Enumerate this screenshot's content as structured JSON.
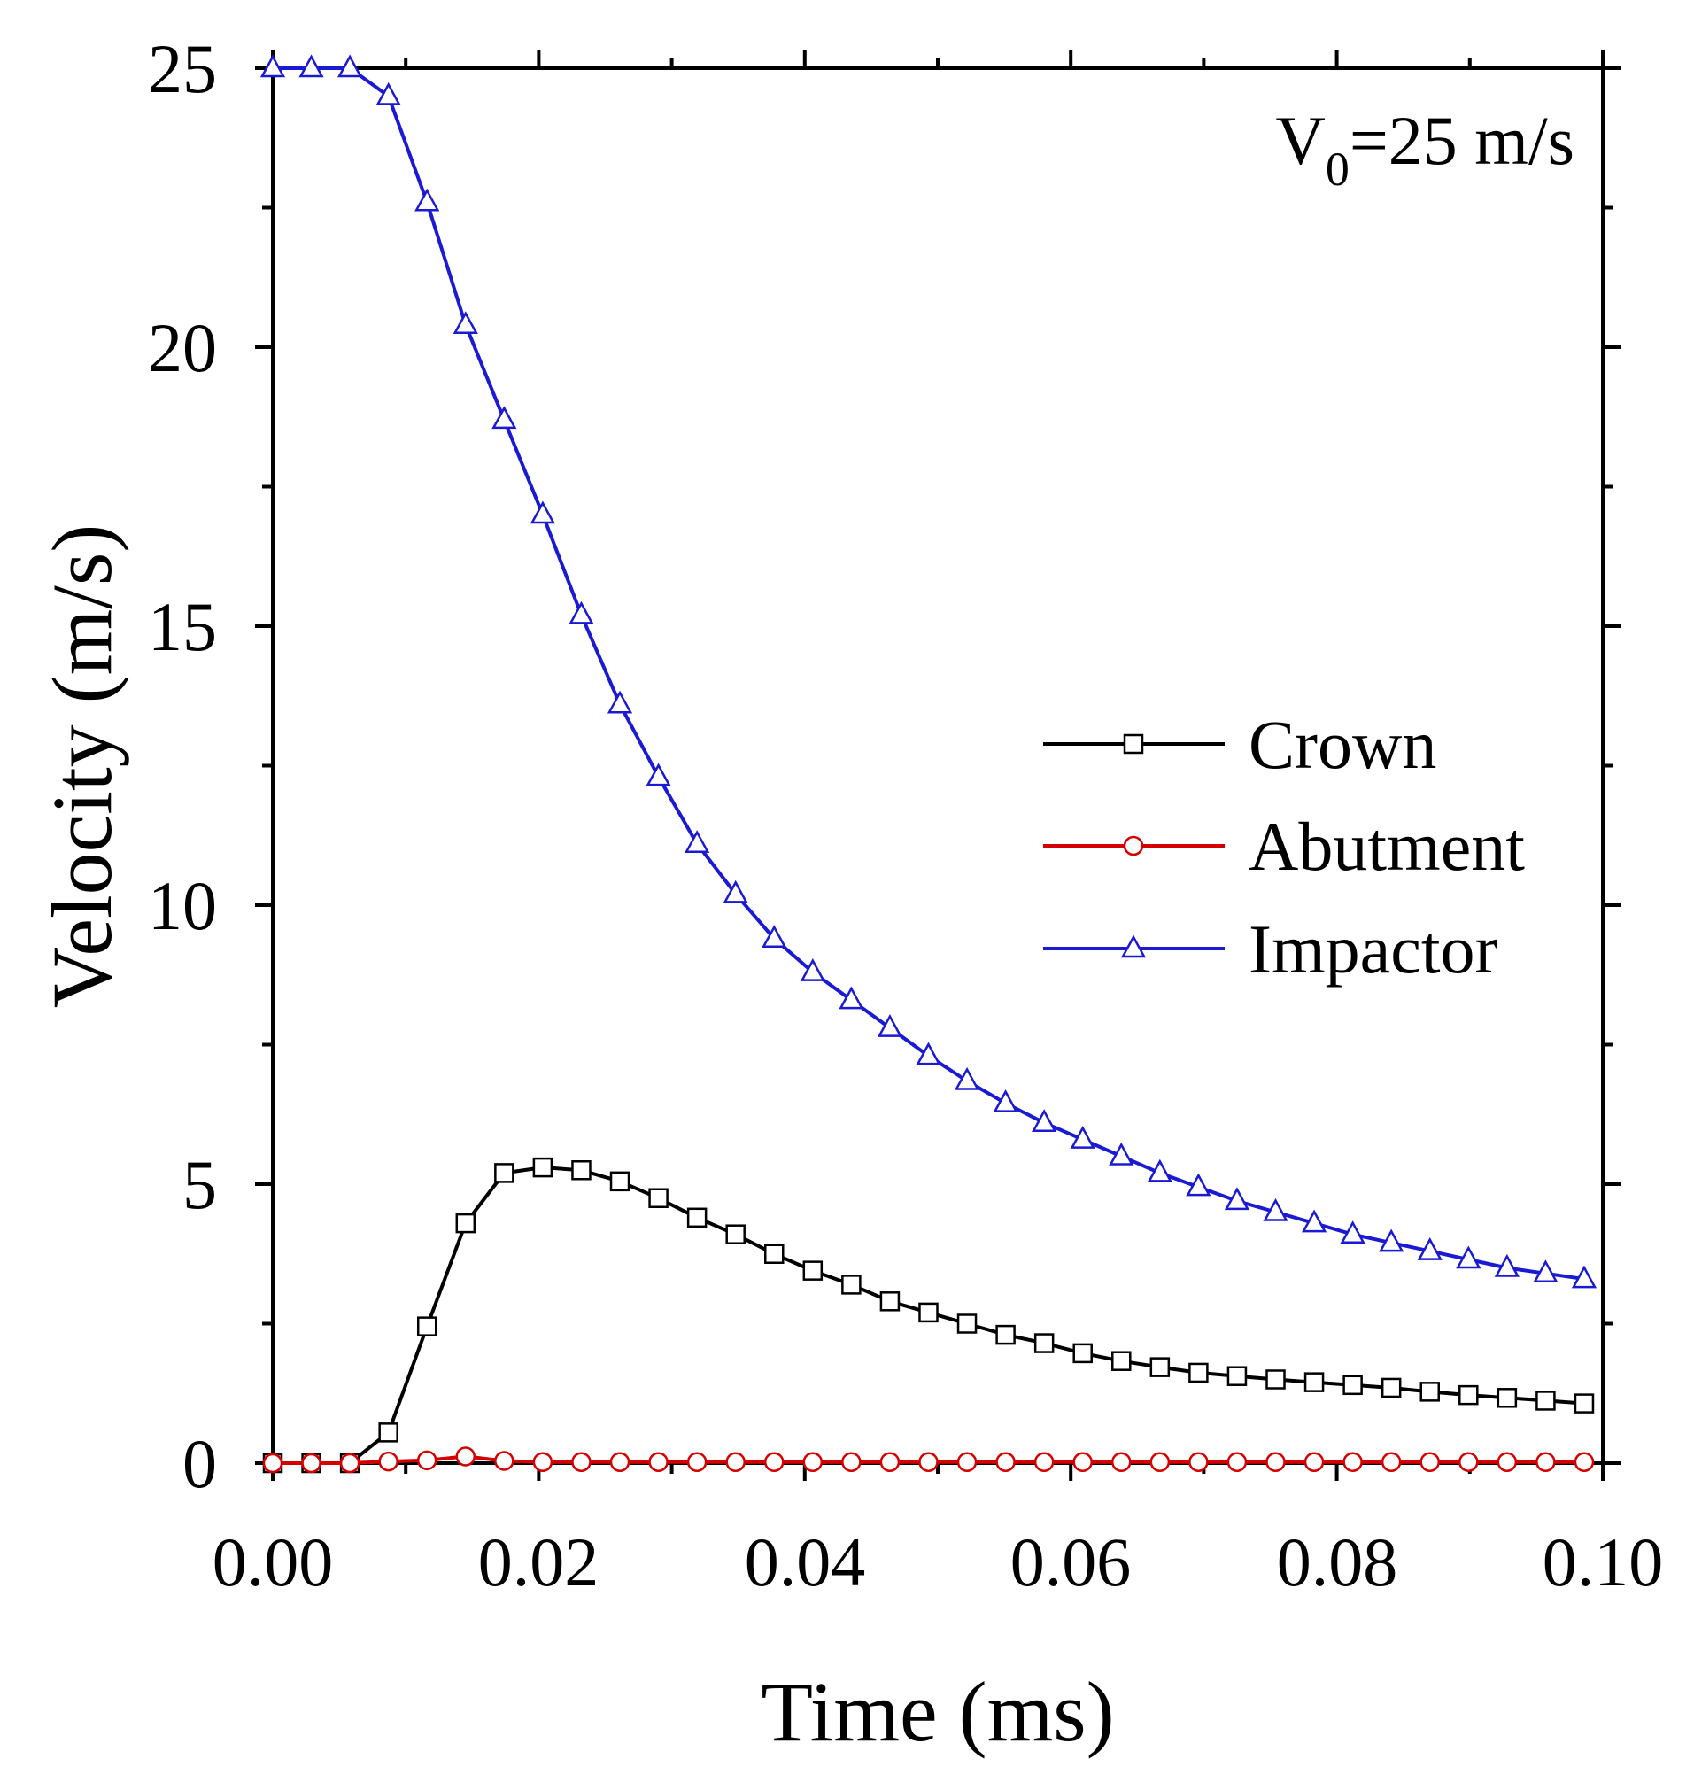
{
  "chart_data": {
    "type": "line",
    "title": "",
    "xlabel": "Time (ms)",
    "ylabel": "Velocity (m/s)",
    "xlim": [
      0,
      0.1
    ],
    "ylim": [
      0,
      25
    ],
    "xticks": [
      "0.00",
      "0.02",
      "0.04",
      "0.06",
      "0.08",
      "0.10"
    ],
    "yticks": [
      "0",
      "5",
      "10",
      "15",
      "20",
      "25"
    ],
    "annotation": "V",
    "annotation_sub": "0",
    "annotation_rest": "=25 m/s",
    "legend_position": "center-right",
    "series": [
      {
        "name": "Crown",
        "color": "#000000",
        "marker": "square",
        "x": [
          0,
          0.0029,
          0.0058,
          0.0087,
          0.0116,
          0.0145,
          0.0174,
          0.0203,
          0.0232,
          0.0261,
          0.029,
          0.0319,
          0.0348,
          0.0377,
          0.0406,
          0.0435,
          0.0464,
          0.0493,
          0.0522,
          0.0551,
          0.058,
          0.0609,
          0.0638,
          0.0667,
          0.0696,
          0.0725,
          0.0754,
          0.0783,
          0.0812,
          0.0841,
          0.087,
          0.0899,
          0.0928,
          0.0957,
          0.0986
        ],
        "y": [
          0,
          0,
          0,
          0.55,
          2.45,
          4.3,
          5.2,
          5.3,
          5.25,
          5.05,
          4.75,
          4.4,
          4.1,
          3.75,
          3.45,
          3.2,
          2.9,
          2.7,
          2.5,
          2.3,
          2.15,
          1.97,
          1.83,
          1.72,
          1.62,
          1.56,
          1.5,
          1.45,
          1.4,
          1.35,
          1.28,
          1.22,
          1.17,
          1.12,
          1.07
        ]
      },
      {
        "name": "Abutment",
        "color": "#d40000",
        "marker": "circle",
        "x": [
          0,
          0.0029,
          0.0058,
          0.0087,
          0.0116,
          0.0145,
          0.0174,
          0.0203,
          0.0232,
          0.0261,
          0.029,
          0.0319,
          0.0348,
          0.0377,
          0.0406,
          0.0435,
          0.0464,
          0.0493,
          0.0522,
          0.0551,
          0.058,
          0.0609,
          0.0638,
          0.0667,
          0.0696,
          0.0725,
          0.0754,
          0.0783,
          0.0812,
          0.0841,
          0.087,
          0.0899,
          0.0928,
          0.0957,
          0.0986
        ],
        "y": [
          0,
          0,
          0,
          0.03,
          0.05,
          0.12,
          0.04,
          0.02,
          0.02,
          0.02,
          0.02,
          0.02,
          0.02,
          0.02,
          0.02,
          0.02,
          0.02,
          0.02,
          0.02,
          0.02,
          0.02,
          0.02,
          0.02,
          0.02,
          0.02,
          0.02,
          0.02,
          0.02,
          0.02,
          0.02,
          0.02,
          0.02,
          0.02,
          0.02,
          0.02
        ]
      },
      {
        "name": "Impactor",
        "color": "#1a1ad4",
        "marker": "triangle",
        "x": [
          0,
          0.0029,
          0.0058,
          0.0087,
          0.0116,
          0.0145,
          0.0174,
          0.0203,
          0.0232,
          0.0261,
          0.029,
          0.0319,
          0.0348,
          0.0377,
          0.0406,
          0.0435,
          0.0464,
          0.0493,
          0.0522,
          0.0551,
          0.058,
          0.0609,
          0.0638,
          0.0667,
          0.0696,
          0.0725,
          0.0754,
          0.0783,
          0.0812,
          0.0841,
          0.087,
          0.0899,
          0.0928,
          0.0957,
          0.0986
        ],
        "y": [
          25,
          25,
          25,
          24.5,
          22.6,
          20.4,
          18.7,
          17.0,
          15.2,
          13.6,
          12.3,
          11.1,
          10.2,
          9.4,
          8.8,
          8.3,
          7.8,
          7.3,
          6.85,
          6.45,
          6.1,
          5.8,
          5.5,
          5.2,
          4.95,
          4.7,
          4.5,
          4.3,
          4.1,
          3.95,
          3.8,
          3.65,
          3.5,
          3.4,
          3.3
        ]
      }
    ]
  }
}
